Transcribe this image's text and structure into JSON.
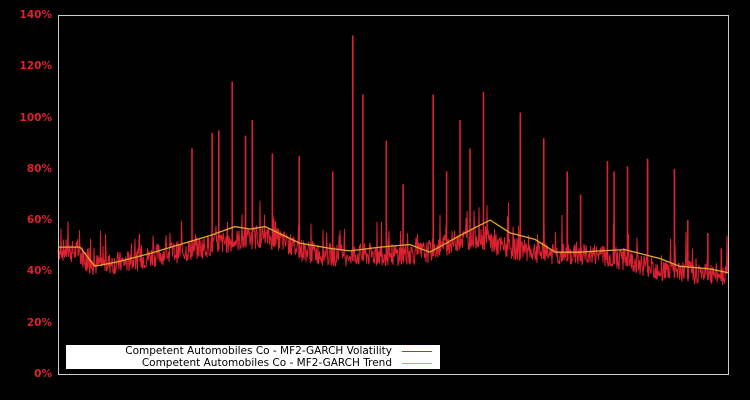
{
  "chart_data": {
    "type": "line",
    "title": "",
    "xlabel": "",
    "ylabel": "",
    "ylim": [
      0,
      140
    ],
    "y_ticks": [
      "0%",
      "20%",
      "40%",
      "60%",
      "80%",
      "100%",
      "120%",
      "140%"
    ],
    "grid": false,
    "legend_position": "lower left",
    "colors": {
      "background": "#000000",
      "axis": "#cccccc",
      "tick_label": "#dc2130",
      "volatility": "#dc2130",
      "trend": "#e0a830"
    },
    "series": [
      {
        "name": "Competent Automobiles Co - MF2-GARCH Volatility",
        "note": "noisy daily series; baseline band and spikes (x in px-normalized 0-1, y in %)",
        "baseline": [
          [
            0,
            46
          ],
          [
            0.03,
            45
          ],
          [
            0.05,
            40
          ],
          [
            0.1,
            41
          ],
          [
            0.15,
            44
          ],
          [
            0.2,
            46
          ],
          [
            0.25,
            49
          ],
          [
            0.28,
            50
          ],
          [
            0.3,
            51
          ],
          [
            0.33,
            50
          ],
          [
            0.36,
            46
          ],
          [
            0.4,
            44
          ],
          [
            0.45,
            44
          ],
          [
            0.5,
            44
          ],
          [
            0.55,
            45
          ],
          [
            0.6,
            50
          ],
          [
            0.63,
            51
          ],
          [
            0.66,
            47
          ],
          [
            0.72,
            45
          ],
          [
            0.75,
            44
          ],
          [
            0.8,
            44
          ],
          [
            0.85,
            42
          ],
          [
            0.9,
            38
          ],
          [
            0.95,
            37
          ],
          [
            1,
            36
          ]
        ],
        "spikes": [
          [
            0.2,
            88
          ],
          [
            0.23,
            94
          ],
          [
            0.24,
            95
          ],
          [
            0.26,
            114
          ],
          [
            0.28,
            93
          ],
          [
            0.29,
            99
          ],
          [
            0.32,
            86
          ],
          [
            0.36,
            85
          ],
          [
            0.41,
            79
          ],
          [
            0.44,
            132
          ],
          [
            0.455,
            109
          ],
          [
            0.49,
            91
          ],
          [
            0.515,
            74
          ],
          [
            0.56,
            109
          ],
          [
            0.58,
            79
          ],
          [
            0.6,
            99
          ],
          [
            0.615,
            88
          ],
          [
            0.635,
            110
          ],
          [
            0.69,
            102
          ],
          [
            0.725,
            92
          ],
          [
            0.76,
            79
          ],
          [
            0.78,
            70
          ],
          [
            0.82,
            83
          ],
          [
            0.83,
            79
          ],
          [
            0.85,
            81
          ],
          [
            0.88,
            84
          ],
          [
            0.88,
            80
          ],
          [
            0.92,
            80
          ],
          [
            0.94,
            60
          ],
          [
            0.97,
            55
          ],
          [
            0.99,
            49
          ]
        ]
      },
      {
        "name": "Competent Automobiles Co - MF2-GARCH Trend",
        "points": [
          [
            0,
            49.5
          ],
          [
            0.033,
            49.5
          ],
          [
            0.055,
            42
          ],
          [
            0.093,
            44
          ],
          [
            0.137,
            47
          ],
          [
            0.182,
            50.5
          ],
          [
            0.227,
            54
          ],
          [
            0.264,
            57.5
          ],
          [
            0.287,
            56.5
          ],
          [
            0.309,
            57.5
          ],
          [
            0.361,
            51
          ],
          [
            0.406,
            49
          ],
          [
            0.436,
            48
          ],
          [
            0.481,
            49.5
          ],
          [
            0.525,
            50.5
          ],
          [
            0.555,
            47.5
          ],
          [
            0.593,
            53
          ],
          [
            0.622,
            57
          ],
          [
            0.645,
            60
          ],
          [
            0.675,
            55
          ],
          [
            0.712,
            52.5
          ],
          [
            0.742,
            47.5
          ],
          [
            0.779,
            47.5
          ],
          [
            0.809,
            48
          ],
          [
            0.846,
            48.5
          ],
          [
            0.899,
            45
          ],
          [
            0.928,
            42
          ],
          [
            0.973,
            41
          ],
          [
            1,
            39.5
          ]
        ]
      }
    ]
  },
  "legend": {
    "items": [
      {
        "label": "Competent Automobiles Co - MF2-GARCH Volatility",
        "color": "#dc2130"
      },
      {
        "label": "Competent Automobiles Co - MF2-GARCH Trend",
        "color": "#e0a830"
      }
    ]
  }
}
